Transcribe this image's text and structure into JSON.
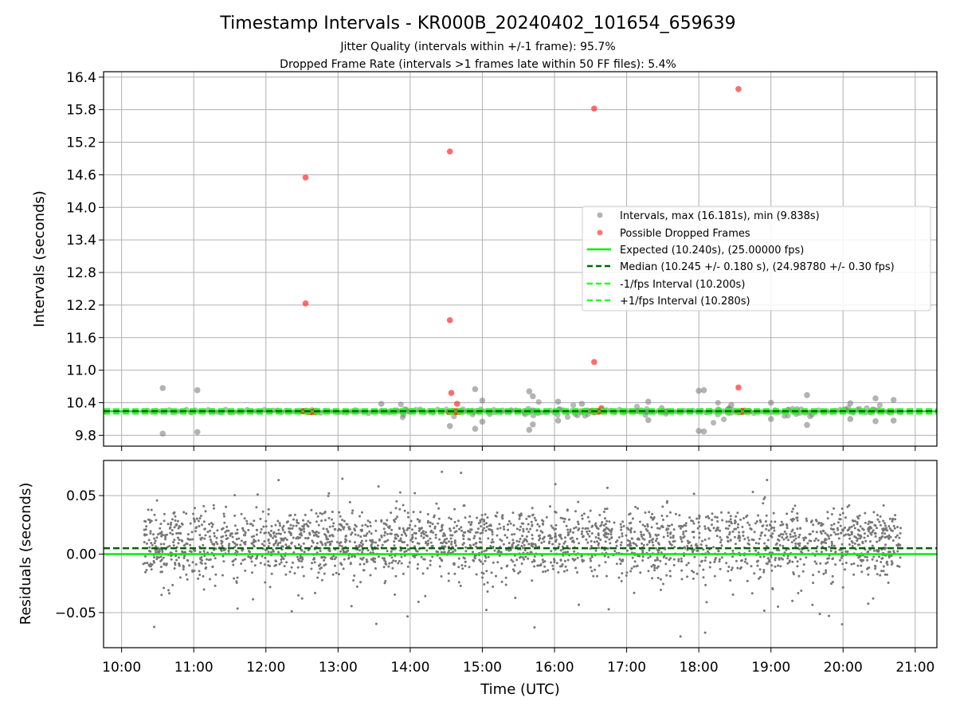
{
  "figure": {
    "title": "Timestamp Intervals - KR000B_20240402_101654_659639",
    "subtitle_1": "Jitter Quality (intervals within +/-1 frame): 95.7%",
    "subtitle_2": "Dropped Frame Rate (intervals >1 frames late within 50 FF files): 5.4%"
  },
  "colors": {
    "intervals": "#808080",
    "dropped": "#ff3b3b",
    "expected": "#00ee00",
    "median": "#006400",
    "fps_band": "#22ff22"
  },
  "chart_data": [
    {
      "type": "scatter",
      "panel": "top",
      "ylabel": "Intervals (seconds)",
      "xlim": [
        9.75,
        21.3
      ],
      "ylim": [
        9.6,
        16.5
      ],
      "yticks": [
        9.8,
        10.4,
        11.0,
        11.6,
        12.2,
        12.8,
        13.4,
        14.0,
        14.6,
        15.2,
        15.8,
        16.4
      ],
      "ytick_labels": [
        "9.8",
        "10.4",
        "11.0",
        "11.6",
        "12.2",
        "12.8",
        "13.4",
        "14.0",
        "14.6",
        "15.2",
        "15.8",
        "16.4"
      ],
      "grid": true,
      "legend_placement": "center-right",
      "expected_interval": 10.24,
      "median_interval": 10.245,
      "minus_1fps_interval": 10.2,
      "plus_1fps_interval": 10.28,
      "intervals_max": 16.181,
      "intervals_min": 9.838,
      "outliers": [
        {
          "x": 10.57,
          "y": 10.67
        },
        {
          "x": 10.57,
          "y": 9.83
        },
        {
          "x": 11.05,
          "y": 10.63
        },
        {
          "x": 11.05,
          "y": 9.86
        },
        {
          "x": 13.6,
          "y": 10.38
        },
        {
          "x": 14.55,
          "y": 9.97
        },
        {
          "x": 14.9,
          "y": 10.65
        },
        {
          "x": 14.9,
          "y": 9.92
        },
        {
          "x": 15.0,
          "y": 10.44
        },
        {
          "x": 15.0,
          "y": 10.05
        },
        {
          "x": 15.65,
          "y": 10.61
        },
        {
          "x": 15.7,
          "y": 10.52
        },
        {
          "x": 15.65,
          "y": 9.9
        },
        {
          "x": 15.7,
          "y": 10.0
        },
        {
          "x": 16.05,
          "y": 10.42
        },
        {
          "x": 16.05,
          "y": 10.07
        },
        {
          "x": 16.38,
          "y": 10.38
        },
        {
          "x": 17.3,
          "y": 10.42
        },
        {
          "x": 17.3,
          "y": 10.08
        },
        {
          "x": 18.0,
          "y": 10.62
        },
        {
          "x": 18.07,
          "y": 10.63
        },
        {
          "x": 18.0,
          "y": 9.88
        },
        {
          "x": 18.07,
          "y": 9.87
        },
        {
          "x": 18.45,
          "y": 10.36
        },
        {
          "x": 19.0,
          "y": 10.4
        },
        {
          "x": 19.0,
          "y": 10.1
        },
        {
          "x": 19.5,
          "y": 10.54
        },
        {
          "x": 19.5,
          "y": 9.99
        },
        {
          "x": 20.1,
          "y": 10.39
        },
        {
          "x": 20.1,
          "y": 10.1
        },
        {
          "x": 20.45,
          "y": 10.48
        },
        {
          "x": 20.45,
          "y": 10.06
        },
        {
          "x": 20.7,
          "y": 10.45
        },
        {
          "x": 20.7,
          "y": 10.07
        }
      ],
      "dropped_frames": [
        {
          "x": 12.55,
          "y": 14.55
        },
        {
          "x": 12.55,
          "y": 12.23
        },
        {
          "x": 14.55,
          "y": 15.03
        },
        {
          "x": 14.55,
          "y": 11.92
        },
        {
          "x": 14.57,
          "y": 10.58
        },
        {
          "x": 14.65,
          "y": 10.38
        },
        {
          "x": 16.55,
          "y": 15.82
        },
        {
          "x": 16.55,
          "y": 11.15
        },
        {
          "x": 16.65,
          "y": 10.3
        },
        {
          "x": 18.55,
          "y": 16.18
        },
        {
          "x": 18.55,
          "y": 10.68
        }
      ],
      "dropped_clusters": [
        [
          12.5,
          12.7
        ],
        [
          14.53,
          14.7
        ],
        [
          16.52,
          16.7
        ],
        [
          18.53,
          18.7
        ]
      ],
      "legend": [
        "Intervals, max (16.181s), min (9.838s)",
        "Possible Dropped Frames",
        "Expected (10.240s), (25.00000 fps)",
        "Median (10.245 +/- 0.180 s), (24.98780 +/- 0.30 fps)",
        "-1/fps Interval (10.200s)",
        "+1/fps Interval (10.280s)"
      ]
    },
    {
      "type": "scatter",
      "panel": "bottom",
      "xlabel": "Time (UTC)",
      "ylabel": "Residuals (seconds)",
      "xlim": [
        9.75,
        21.3
      ],
      "ylim": [
        -0.08,
        0.08
      ],
      "xticks": [
        10,
        11,
        12,
        13,
        14,
        15,
        16,
        17,
        18,
        19,
        20,
        21
      ],
      "xtick_labels": [
        "10:00",
        "11:00",
        "12:00",
        "13:00",
        "14:00",
        "15:00",
        "16:00",
        "17:00",
        "18:00",
        "19:00",
        "20:00",
        "21:00"
      ],
      "yticks": [
        0.05,
        0.0,
        -0.05
      ],
      "ytick_labels": [
        "0.05",
        "0.00",
        "−0.05"
      ],
      "grid": true,
      "zero_line": 0.0,
      "median_residual": 0.005,
      "x_range": [
        10.3,
        20.8
      ],
      "residual_band": [
        -0.03,
        0.04
      ]
    }
  ]
}
